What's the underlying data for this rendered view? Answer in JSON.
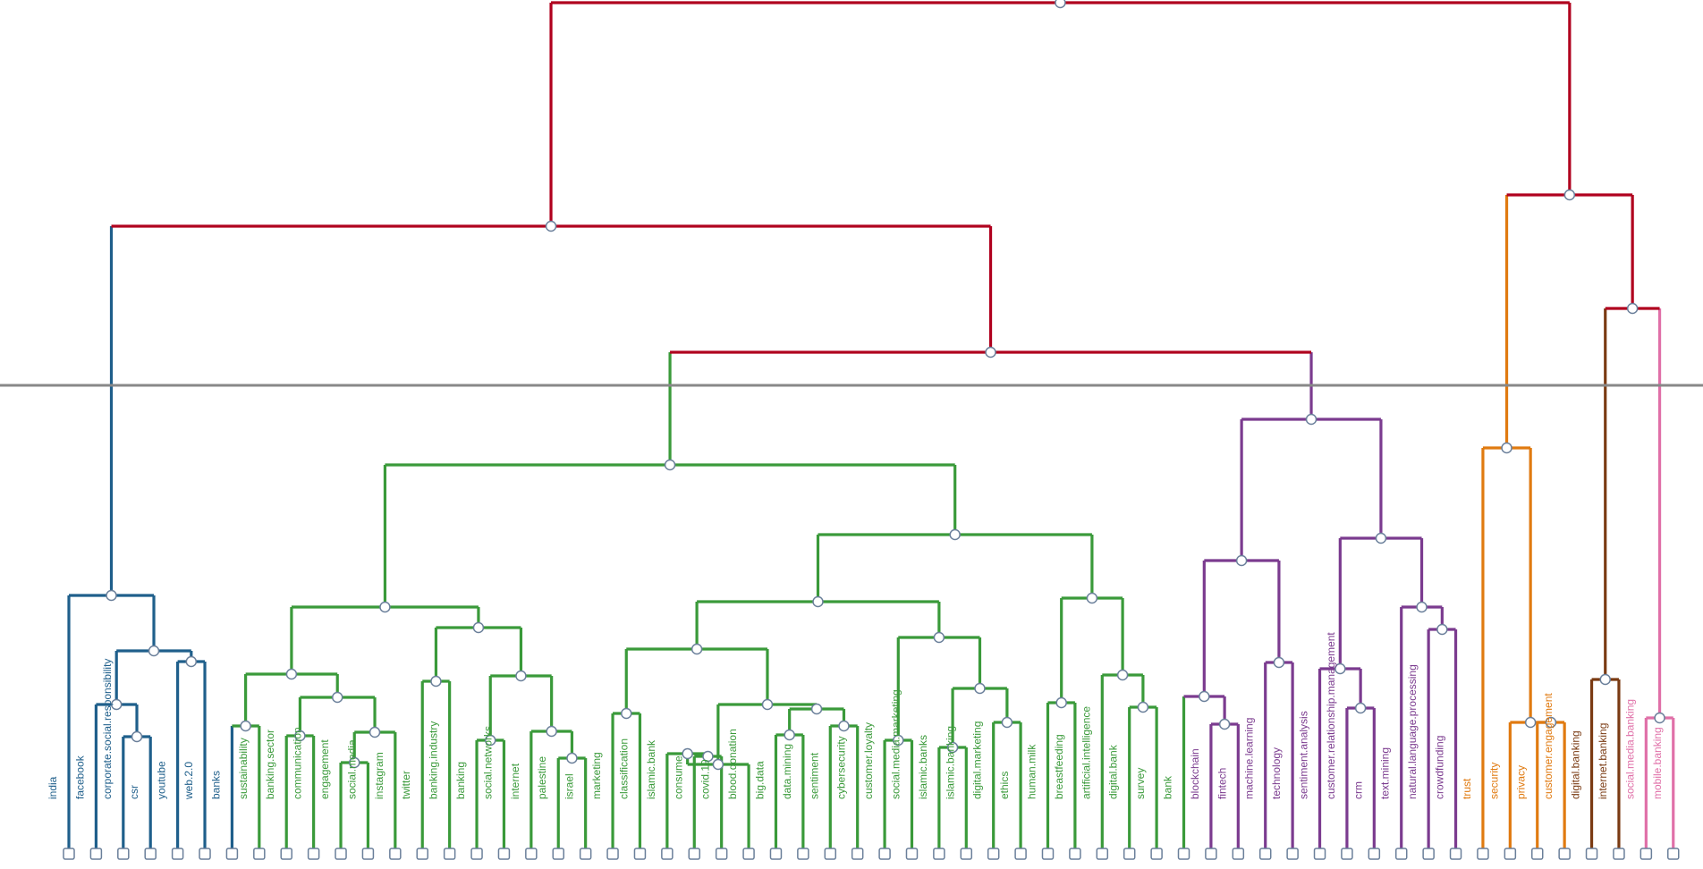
{
  "colors": {
    "root": "#b0001e",
    "blue": "#1f5f8b",
    "green": "#3a9a3a",
    "purple": "#7b3b8f",
    "orange": "#e07a10",
    "brown": "#7a3a12",
    "pink": "#e070a8",
    "cut_line": "#888888",
    "node_fill": "#ffffff",
    "node_stroke": "#6a7f9a"
  },
  "leaves": [
    {
      "label": "india",
      "color": "blue"
    },
    {
      "label": "facebook",
      "color": "blue"
    },
    {
      "label": "corporate.social.responsibility",
      "color": "blue"
    },
    {
      "label": "csr",
      "color": "blue"
    },
    {
      "label": "youtube",
      "color": "blue"
    },
    {
      "label": "web.2.0",
      "color": "blue"
    },
    {
      "label": "banks",
      "color": "blue"
    },
    {
      "label": "sustainability",
      "color": "green"
    },
    {
      "label": "banking.sector",
      "color": "green"
    },
    {
      "label": "communication",
      "color": "green"
    },
    {
      "label": "engagement",
      "color": "green"
    },
    {
      "label": "social.media",
      "color": "green"
    },
    {
      "label": "instagram",
      "color": "green"
    },
    {
      "label": "twitter",
      "color": "green"
    },
    {
      "label": "banking.industry",
      "color": "green"
    },
    {
      "label": "banking",
      "color": "green"
    },
    {
      "label": "social.networks",
      "color": "green"
    },
    {
      "label": "internet",
      "color": "green"
    },
    {
      "label": "palestine",
      "color": "green"
    },
    {
      "label": "israel",
      "color": "green"
    },
    {
      "label": "marketing",
      "color": "green"
    },
    {
      "label": "classification",
      "color": "green"
    },
    {
      "label": "islamic.bank",
      "color": "green"
    },
    {
      "label": "consumer",
      "color": "green"
    },
    {
      "label": "covid.19",
      "color": "green"
    },
    {
      "label": "blood.donation",
      "color": "green"
    },
    {
      "label": "big.data",
      "color": "green"
    },
    {
      "label": "data.mining",
      "color": "green"
    },
    {
      "label": "sentiment",
      "color": "green"
    },
    {
      "label": "cybersecurity",
      "color": "green"
    },
    {
      "label": "customer.loyalty",
      "color": "green"
    },
    {
      "label": "social.media.marketing",
      "color": "green"
    },
    {
      "label": "islamic.banks",
      "color": "green"
    },
    {
      "label": "islamic.banking",
      "color": "green"
    },
    {
      "label": "digital.marketing",
      "color": "green"
    },
    {
      "label": "ethics",
      "color": "green"
    },
    {
      "label": "human.milk",
      "color": "green"
    },
    {
      "label": "breastfeeding",
      "color": "green"
    },
    {
      "label": "artificial.intelligence",
      "color": "green"
    },
    {
      "label": "digital.bank",
      "color": "green"
    },
    {
      "label": "survey",
      "color": "green"
    },
    {
      "label": "bank",
      "color": "green"
    },
    {
      "label": "blockchain",
      "color": "purple"
    },
    {
      "label": "fintech",
      "color": "purple"
    },
    {
      "label": "machine.learning",
      "color": "purple"
    },
    {
      "label": "technology",
      "color": "purple"
    },
    {
      "label": "sentiment.analysis",
      "color": "purple"
    },
    {
      "label": "customer.relationship.management",
      "color": "purple"
    },
    {
      "label": "crm",
      "color": "purple"
    },
    {
      "label": "text.mining",
      "color": "purple"
    },
    {
      "label": "natural.language.processing",
      "color": "purple"
    },
    {
      "label": "crowdfunding",
      "color": "purple"
    },
    {
      "label": "trust",
      "color": "orange"
    },
    {
      "label": "security",
      "color": "orange"
    },
    {
      "label": "privacy",
      "color": "orange"
    },
    {
      "label": "customer.engagement",
      "color": "orange"
    },
    {
      "label": "digital.banking",
      "color": "brown"
    },
    {
      "label": "internet.banking",
      "color": "brown"
    },
    {
      "label": "social.media.banking",
      "color": "pink"
    },
    {
      "label": "mobile.banking",
      "color": "pink"
    }
  ]
}
